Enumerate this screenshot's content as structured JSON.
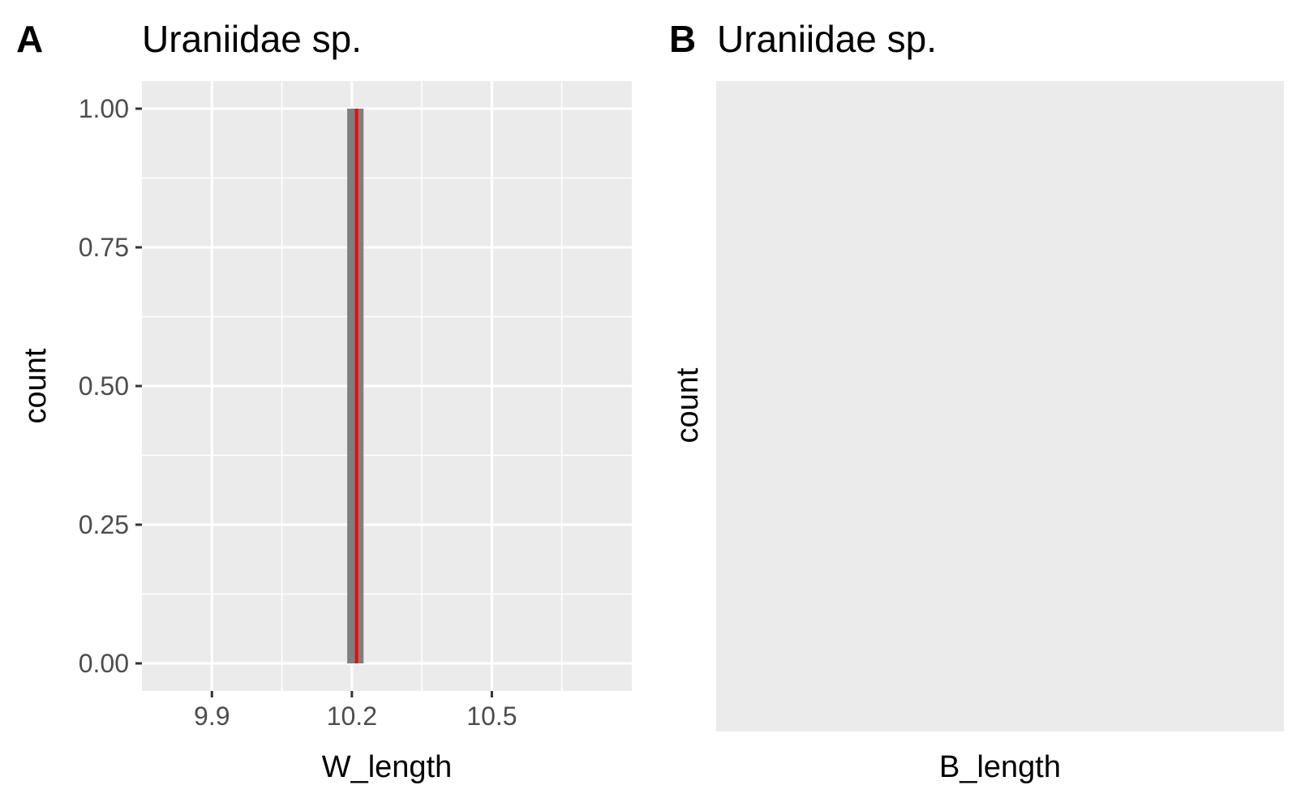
{
  "chart_data": [
    {
      "type": "histogram",
      "panel_tag": "A",
      "title": "Uraniidae sp.",
      "xlabel": "W_length",
      "ylabel": "count",
      "xlim": [
        9.75,
        10.8
      ],
      "ylim": [
        0,
        1
      ],
      "x_ticks": [
        9.9,
        10.2,
        10.5
      ],
      "x_tick_labels": [
        "9.9",
        "10.2",
        "10.5"
      ],
      "y_ticks": [
        0,
        0.25,
        0.5,
        0.75,
        1
      ],
      "y_tick_labels": [
        "0.00",
        "0.25",
        "0.50",
        "0.75",
        "1.00"
      ],
      "bins": [
        {
          "x_start": 10.19,
          "x_end": 10.225,
          "count": 1
        }
      ],
      "vline": {
        "x": 10.21,
        "color": "#ff0000"
      },
      "bar_color": "#7f7f7f",
      "panel_background": "#ebebeb",
      "grid": true
    },
    {
      "type": "histogram",
      "panel_tag": "B",
      "title": "Uraniidae sp.",
      "xlabel": "B_length",
      "ylabel": "count",
      "bins": [],
      "panel_background": "#ebebeb",
      "grid": false
    }
  ]
}
